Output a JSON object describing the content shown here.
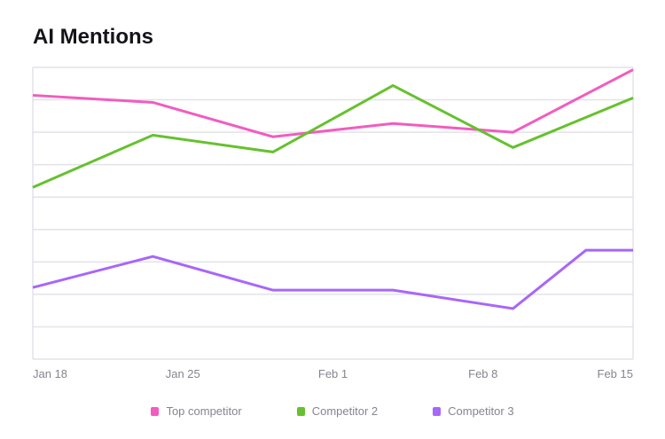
{
  "chart_data": {
    "type": "line",
    "title": "AI Mentions",
    "xlabel": "",
    "ylabel": "",
    "x_unit": "days since Jan 18",
    "xlim": [
      0,
      28
    ],
    "ylim": [
      0,
      9
    ],
    "grid": true,
    "x_ticks": [
      {
        "label": "Jan 18",
        "x": 0
      },
      {
        "label": "Jan 25",
        "x": 7
      },
      {
        "label": "Feb 1",
        "x": 14
      },
      {
        "label": "Feb 8",
        "x": 21
      },
      {
        "label": "Feb 15",
        "x": 28
      }
    ],
    "legend_placement": "bottom-center",
    "series": [
      {
        "name": "Top competitor",
        "color": "#f25cc0",
        "points": [
          [
            0,
            8.14
          ],
          [
            5.6,
            7.92
          ],
          [
            11.2,
            6.86
          ],
          [
            16.8,
            7.27
          ],
          [
            22.4,
            7.0
          ],
          [
            28,
            8.93
          ]
        ]
      },
      {
        "name": "Competitor 2",
        "color": "#66c12e",
        "points": [
          [
            0,
            5.3
          ],
          [
            5.6,
            6.91
          ],
          [
            11.2,
            6.39
          ],
          [
            16.8,
            8.44
          ],
          [
            22.4,
            6.53
          ],
          [
            28,
            8.06
          ]
        ]
      },
      {
        "name": "Competitor 3",
        "color": "#a866fa",
        "points": [
          [
            0,
            2.21
          ],
          [
            5.6,
            3.17
          ],
          [
            11.2,
            2.13
          ],
          [
            16.8,
            2.13
          ],
          [
            22.4,
            1.56
          ],
          [
            25.8,
            3.36
          ],
          [
            28,
            3.36
          ]
        ]
      }
    ]
  }
}
